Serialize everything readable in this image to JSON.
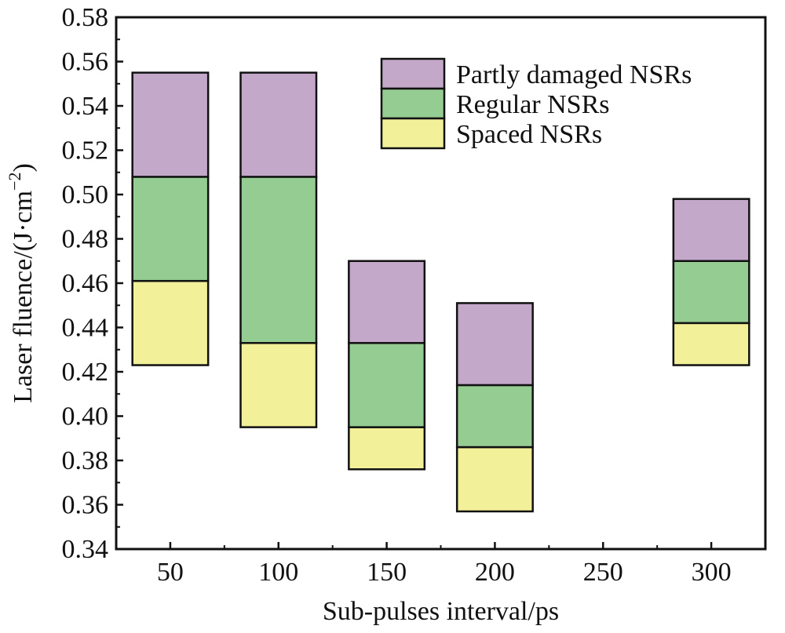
{
  "chart_data": {
    "type": "bar",
    "subtype": "floating-stacked",
    "title": "",
    "xlabel": "Sub-pulses interval/ps",
    "ylabel_main": "Laser fluence/(J·cm",
    "ylabel_sup": "−2",
    "ylabel_close": ")",
    "ylim": [
      0.34,
      0.58
    ],
    "xlim": [
      25,
      325
    ],
    "y_ticks": [
      "0.34",
      "0.36",
      "0.38",
      "0.40",
      "0.42",
      "0.44",
      "0.46",
      "0.48",
      "0.50",
      "0.52",
      "0.54",
      "0.56",
      "0.58"
    ],
    "x_ticks": [
      "50",
      "100",
      "150",
      "200",
      "250",
      "300"
    ],
    "legend_position": "top-right",
    "series": [
      {
        "name": "Spaced NSRs",
        "color": "#f3f09a",
        "ranges": [
          {
            "x": 50,
            "low": 0.423,
            "high": 0.461
          },
          {
            "x": 100,
            "low": 0.395,
            "high": 0.433
          },
          {
            "x": 150,
            "low": 0.376,
            "high": 0.395
          },
          {
            "x": 200,
            "low": 0.357,
            "high": 0.386
          },
          {
            "x": 300,
            "low": 0.423,
            "high": 0.442
          }
        ]
      },
      {
        "name": "Regular NSRs",
        "color": "#95cc91",
        "ranges": [
          {
            "x": 50,
            "low": 0.461,
            "high": 0.508
          },
          {
            "x": 100,
            "low": 0.433,
            "high": 0.508
          },
          {
            "x": 150,
            "low": 0.395,
            "high": 0.433
          },
          {
            "x": 200,
            "low": 0.386,
            "high": 0.414
          },
          {
            "x": 300,
            "low": 0.442,
            "high": 0.47
          }
        ]
      },
      {
        "name": "Partly damaged NSRs",
        "color": "#c3a8c9",
        "ranges": [
          {
            "x": 50,
            "low": 0.508,
            "high": 0.555
          },
          {
            "x": 100,
            "low": 0.508,
            "high": 0.555
          },
          {
            "x": 150,
            "low": 0.433,
            "high": 0.47
          },
          {
            "x": 200,
            "low": 0.414,
            "high": 0.451
          },
          {
            "x": 300,
            "low": 0.47,
            "high": 0.498
          }
        ]
      }
    ],
    "legend_order": [
      "Partly damaged NSRs",
      "Regular NSRs",
      "Spaced NSRs"
    ],
    "bar_width_units": 35
  }
}
